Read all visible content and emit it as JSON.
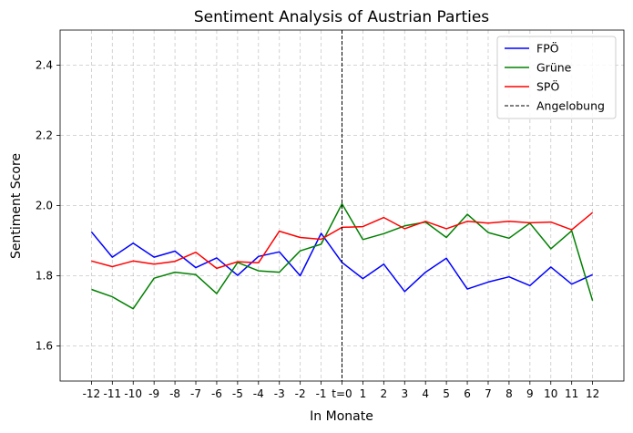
{
  "chart_data": {
    "type": "line",
    "title": "Sentiment Analysis of Austrian Parties",
    "xlabel": "In Monate",
    "ylabel": "Sentiment Score",
    "x": [
      -12,
      -11,
      -10,
      -9,
      -8,
      -7,
      -6,
      -5,
      -4,
      -3,
      -2,
      -1,
      0,
      1,
      2,
      3,
      4,
      5,
      6,
      7,
      8,
      9,
      10,
      11,
      12
    ],
    "x_tick_labels": [
      "-12",
      "-11",
      "-10",
      "-9",
      "-8",
      "-7",
      "-6",
      "-5",
      "-4",
      "-3",
      "-2",
      "-1",
      "t=0",
      "1",
      "2",
      "3",
      "4",
      "5",
      "6",
      "7",
      "8",
      "9",
      "10",
      "11",
      "12"
    ],
    "xlim": [
      -13.5,
      13.5
    ],
    "ylim": [
      1.5,
      2.5
    ],
    "y_ticks": [
      1.6,
      1.8,
      2.0,
      2.2,
      2.4
    ],
    "y_tick_labels": [
      "1.6",
      "1.8",
      "2.0",
      "2.2",
      "2.4"
    ],
    "grid": true,
    "legend_position": "top-right",
    "series": [
      {
        "name": "FPÖ",
        "color": "#0000ff",
        "values": [
          1.925,
          1.853,
          1.893,
          1.853,
          1.87,
          1.823,
          1.851,
          1.801,
          1.855,
          1.868,
          1.8,
          1.921,
          1.838,
          1.792,
          1.833,
          1.755,
          1.81,
          1.85,
          1.762,
          1.782,
          1.797,
          1.772,
          1.825,
          1.776,
          1.803
        ]
      },
      {
        "name": "Grüne",
        "color": "#008000",
        "values": [
          1.761,
          1.74,
          1.706,
          1.793,
          1.81,
          1.803,
          1.749,
          1.838,
          1.814,
          1.81,
          1.871,
          1.89,
          2.005,
          1.903,
          1.92,
          1.942,
          1.953,
          1.909,
          1.975,
          1.923,
          1.907,
          1.95,
          1.877,
          1.928,
          1.729
        ]
      },
      {
        "name": "SPÖ",
        "color": "#ff0000",
        "values": [
          1.842,
          1.826,
          1.842,
          1.833,
          1.841,
          1.867,
          1.821,
          1.84,
          1.837,
          1.927,
          1.909,
          1.904,
          1.938,
          1.94,
          1.966,
          1.934,
          1.955,
          1.934,
          1.955,
          1.95,
          1.955,
          1.951,
          1.953,
          1.931,
          1.98
        ]
      }
    ],
    "vline": {
      "x": 0,
      "label": "Angelobung",
      "style": "dashed",
      "color": "#000000"
    }
  }
}
